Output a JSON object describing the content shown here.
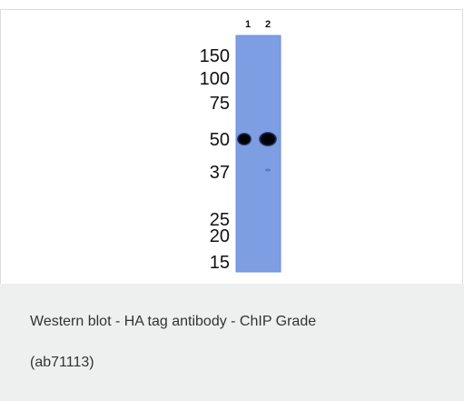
{
  "figure": {
    "lane_labels": [
      "1",
      "2"
    ],
    "marker_labels": [
      "150",
      "100",
      "75",
      "50",
      "37",
      "25",
      "20",
      "15"
    ]
  },
  "caption": {
    "title": "Western blot - HA tag antibody - ChIP Grade",
    "catalog": "(ab71113)"
  }
}
